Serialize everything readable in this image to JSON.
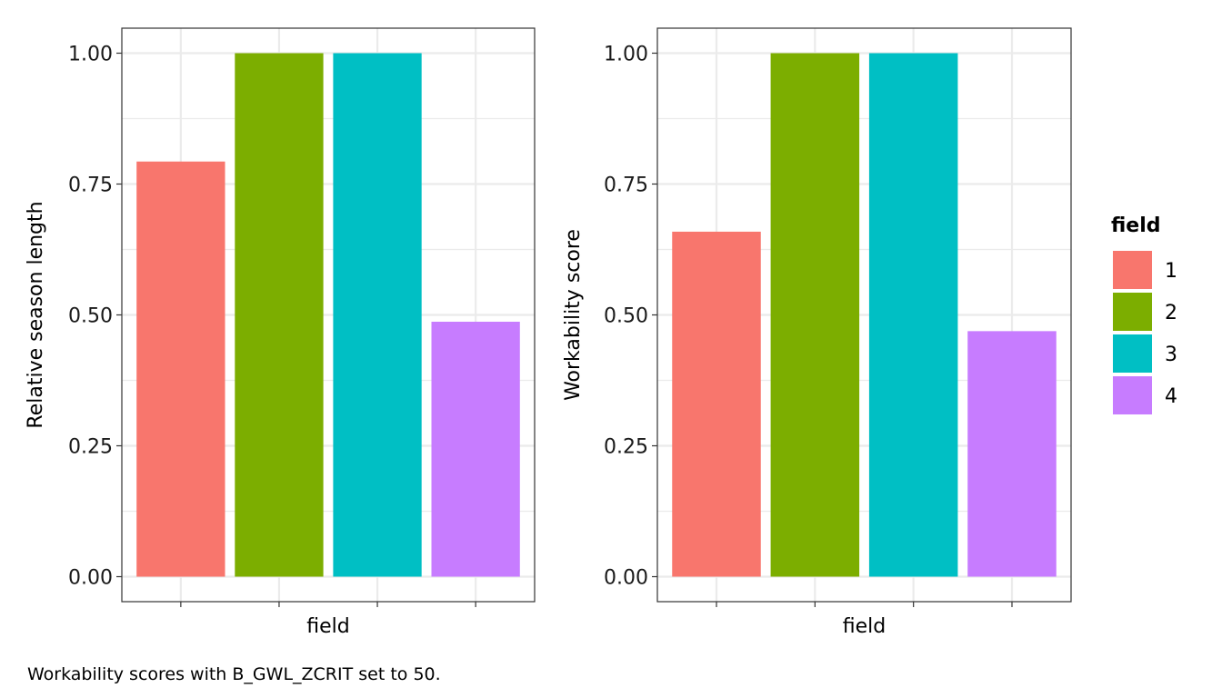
{
  "chart_data": [
    {
      "type": "bar",
      "categories": [
        "1",
        "2",
        "3",
        "4"
      ],
      "values": [
        0.793,
        1.0,
        1.0,
        0.487
      ],
      "xlabel": "field",
      "ylabel": "Relative season length",
      "ylim": [
        0,
        1.05
      ],
      "yticks": [
        "0.00",
        "0.25",
        "0.50",
        "0.75",
        "1.00"
      ],
      "grid": true
    },
    {
      "type": "bar",
      "categories": [
        "1",
        "2",
        "3",
        "4"
      ],
      "values": [
        0.659,
        1.0,
        1.0,
        0.469
      ],
      "xlabel": "field",
      "ylabel": "Workability score",
      "ylim": [
        0,
        1.05
      ],
      "yticks": [
        "0.00",
        "0.25",
        "0.50",
        "0.75",
        "1.00"
      ],
      "grid": true
    }
  ],
  "legend": {
    "title": "field",
    "placement": "right",
    "entries": [
      {
        "label": "1",
        "color": "#F8766D"
      },
      {
        "label": "2",
        "color": "#7CAE00"
      },
      {
        "label": "3",
        "color": "#00BFC4"
      },
      {
        "label": "4",
        "color": "#C77CFF"
      }
    ]
  },
  "caption": "Workability scores with B_GWL_ZCRIT set to 50."
}
